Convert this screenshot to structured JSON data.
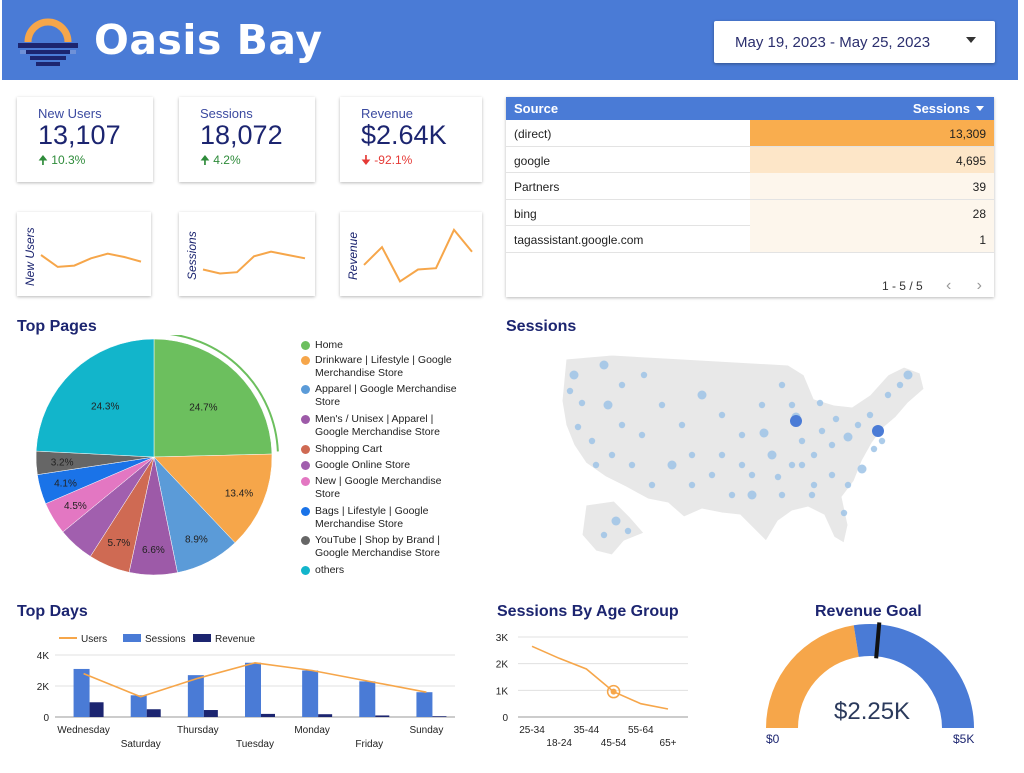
{
  "header": {
    "brand": "Oasis Bay",
    "date_range": "May 19, 2023 - May 25, 2023"
  },
  "kpis": [
    {
      "label": "New Users",
      "value": "13,107",
      "delta": "10.3%",
      "direction": "up"
    },
    {
      "label": "Sessions",
      "value": "18,072",
      "delta": "4.2%",
      "direction": "up"
    },
    {
      "label": "Revenue",
      "value": "$2.64K",
      "delta": "-92.1%",
      "direction": "down"
    }
  ],
  "sparklines": [
    {
      "label": "New Users",
      "values": [
        50,
        32,
        34,
        45,
        52,
        47,
        40
      ]
    },
    {
      "label": "Sessions",
      "values": [
        28,
        22,
        24,
        48,
        55,
        50,
        45
      ]
    },
    {
      "label": "Revenue",
      "values": [
        35,
        62,
        10,
        28,
        30,
        88,
        55
      ]
    }
  ],
  "source_table": {
    "col_source": "Source",
    "col_sessions": "Sessions",
    "rows": [
      {
        "source": "(direct)",
        "sessions": "13,309",
        "value": 13309
      },
      {
        "source": "google",
        "sessions": "4,695",
        "value": 4695
      },
      {
        "source": "Partners",
        "sessions": "39",
        "value": 39
      },
      {
        "source": "bing",
        "sessions": "28",
        "value": 28
      },
      {
        "source": "tagassistant.google.com",
        "sessions": "1",
        "value": 1
      }
    ],
    "pagination": "1 - 5 / 5"
  },
  "titles": {
    "top_pages": "Top Pages",
    "sessions_map": "Sessions",
    "top_days": "Top Days",
    "age_group": "Sessions By Age Group",
    "revenue_goal": "Revenue Goal"
  },
  "top_pages": {
    "slices": [
      {
        "label": "Home",
        "pct": 24.7,
        "pct_label": "24.7%",
        "color": "#6cbf5e"
      },
      {
        "label": "Drinkware | Lifestyle | Google Merchandise Store",
        "pct": 13.4,
        "pct_label": "13.4%",
        "color": "#f6a64a"
      },
      {
        "label": "Apparel | Google Merchandise Store",
        "pct": 8.9,
        "pct_label": "8.9%",
        "color": "#5b9bd8"
      },
      {
        "label": "Men's / Unisex | Apparel | Google Merchandise Store",
        "pct": 6.6,
        "pct_label": "6.6%",
        "color": "#9d5aa8"
      },
      {
        "label": "Shopping Cart",
        "pct": 5.7,
        "pct_label": "5.7%",
        "color": "#cf6a53"
      },
      {
        "label": "Google Online Store",
        "pct": 5.0,
        "pct_label": "",
        "color": "#a15fae"
      },
      {
        "label": "New | Google Merchandise Store",
        "pct": 4.5,
        "pct_label": "4.5%",
        "color": "#e377c2"
      },
      {
        "label": "Bags | Lifestyle | Google Merchandise Store",
        "pct": 4.1,
        "pct_label": "4.1%",
        "color": "#1a73e8"
      },
      {
        "label": "YouTube | Shop by Brand | Google Merchandise Store",
        "pct": 3.2,
        "pct_label": "3.2%",
        "color": "#666666"
      },
      {
        "label": "others",
        "pct": 24.3,
        "pct_label": "24.3%",
        "color": "#12b5cb"
      }
    ]
  },
  "chart_data": [
    {
      "type": "bar",
      "title": "Top Days",
      "categories": [
        "Wednesday",
        "Saturday",
        "Thursday",
        "Tuesday",
        "Monday",
        "Friday",
        "Sunday"
      ],
      "series": [
        {
          "name": "Users",
          "kind": "line",
          "color": "#f6a64a",
          "values": [
            2800,
            1300,
            2500,
            3500,
            3000,
            2300,
            1600
          ]
        },
        {
          "name": "Sessions",
          "kind": "bar",
          "color": "#4a7bd6",
          "values": [
            3100,
            1400,
            2700,
            3500,
            3000,
            2300,
            1600
          ]
        },
        {
          "name": "Revenue",
          "kind": "bar",
          "color": "#1c2570",
          "values": [
            950,
            500,
            450,
            200,
            180,
            100,
            50
          ]
        }
      ],
      "yticks": [
        "4K",
        "2K",
        "0"
      ],
      "ylim": [
        0,
        4000
      ]
    },
    {
      "type": "line",
      "title": "Sessions By Age Group",
      "categories": [
        "25-34",
        "18-24",
        "35-44",
        "45-54",
        "55-64",
        "65+"
      ],
      "values": [
        2650,
        2200,
        1800,
        950,
        500,
        300
      ],
      "highlight_index": 3,
      "yticks": [
        "3K",
        "2K",
        "1K",
        "0"
      ],
      "ylim": [
        0,
        3000
      ],
      "color": "#f6a64a"
    }
  ],
  "revenue_goal": {
    "value_label": "$2.25K",
    "min_label": "$0",
    "max_label": "$5K",
    "min": 0,
    "max": 5000,
    "value": 2250,
    "target": 2640,
    "fill_color": "#f6a64a",
    "rest_color": "#4a7bd6"
  },
  "map": {
    "dot_color": "#9ec3e6",
    "land_color": "#e8e8e8"
  }
}
